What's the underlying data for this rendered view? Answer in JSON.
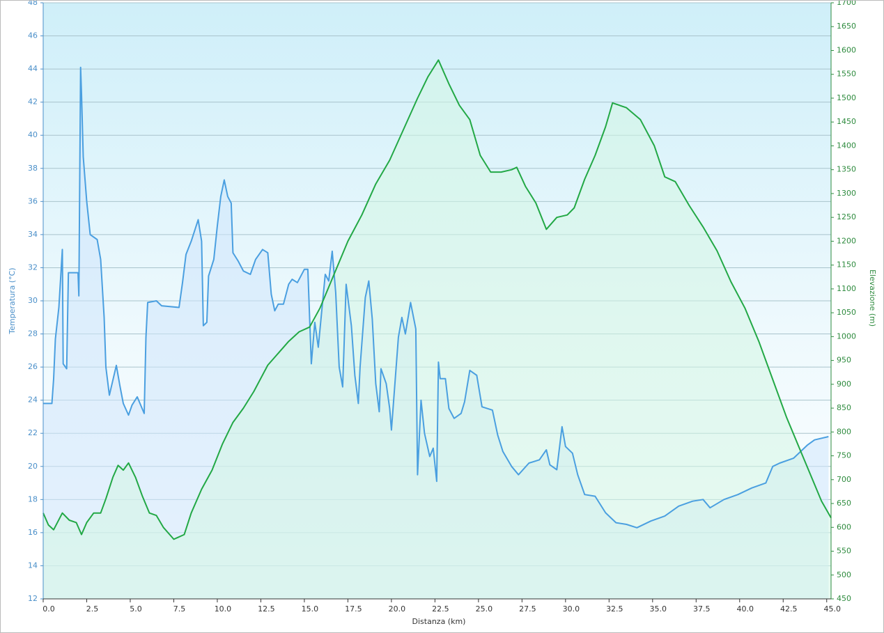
{
  "chart_data": {
    "type": "line",
    "x_label": "Distanza  (km)",
    "y_label": "Temperatura (°C)",
    "y2_label": "Elevazione (m)",
    "xlim": [
      0,
      45.25
    ],
    "xticks": [
      {
        "value": 0,
        "label": "0.0"
      },
      2.5,
      {
        "value": 5,
        "label": "5.0"
      },
      7.5,
      {
        "value": 10,
        "label": "10.0"
      },
      12.5,
      {
        "value": 15,
        "label": "15.0"
      },
      17.5,
      {
        "value": 20,
        "label": "20.0"
      },
      22.5,
      {
        "value": 25,
        "label": "25.0"
      },
      27.5,
      {
        "value": 30,
        "label": "30.0"
      },
      32.5,
      {
        "value": 35,
        "label": "35.0"
      },
      37.5,
      {
        "value": 40,
        "label": "40.0"
      },
      42.5,
      {
        "value": 45,
        "label": "45.0"
      }
    ],
    "ylim": [
      12,
      48
    ],
    "yticks": [
      12,
      14,
      16,
      18,
      20,
      22,
      24,
      26,
      28,
      30,
      32,
      34,
      36,
      38,
      40,
      42,
      44,
      46,
      48
    ],
    "y2lim": [
      450,
      1700
    ],
    "y2ticks": [
      450,
      500,
      550,
      600,
      650,
      700,
      750,
      800,
      850,
      900,
      950,
      1000,
      1050,
      1100,
      1150,
      1200,
      1250,
      1300,
      1350,
      1400,
      1450,
      1500,
      1550,
      1600,
      1650,
      1700
    ],
    "grid": true,
    "series": [
      {
        "name": "Temperatura",
        "color": "#4a9fe0",
        "fill": "#cfe6fb",
        "axis": "y",
        "x": [
          0,
          0.5,
          0.6,
          0.7,
          0.9,
          1.1,
          1.15,
          1.35,
          1.45,
          2.0,
          2.05,
          2.15,
          2.2,
          2.3,
          2.5,
          2.7,
          3.1,
          3.3,
          3.5,
          3.6,
          3.8,
          4.2,
          4.4,
          4.6,
          4.9,
          5.1,
          5.4,
          5.8,
          5.9,
          6.0,
          6.5,
          6.8,
          7.8,
          8.0,
          8.2,
          8.5,
          8.9,
          9.1,
          9.2,
          9.4,
          9.5,
          9.8,
          10.0,
          10.2,
          10.4,
          10.6,
          10.8,
          10.9,
          11.2,
          11.5,
          11.9,
          12.2,
          12.6,
          12.9,
          13.1,
          13.3,
          13.5,
          13.8,
          14.1,
          14.3,
          14.6,
          15.0,
          15.2,
          15.4,
          15.6,
          15.8,
          16.2,
          16.4,
          16.6,
          16.8,
          17.0,
          17.2,
          17.4,
          17.7,
          17.9,
          18.1,
          18.2,
          18.5,
          18.7,
          18.9,
          19.1,
          19.3,
          19.4,
          19.7,
          19.9,
          20.0,
          20.2,
          20.4,
          20.6,
          20.8,
          21.1,
          21.4,
          21.5,
          21.7,
          21.9,
          22.2,
          22.4,
          22.6,
          22.7,
          22.8,
          23.1,
          23.3,
          23.6,
          24.0,
          24.2,
          24.5,
          24.9,
          25.2,
          25.8,
          26.1,
          26.4,
          26.9,
          27.3,
          27.9,
          28.5,
          28.9,
          29.1,
          29.5,
          29.8,
          30.0,
          30.4,
          30.7,
          31.1,
          31.7,
          32.3,
          32.9,
          33.5,
          34.1,
          34.9,
          35.7,
          36.5,
          37.3,
          37.9,
          38.3,
          39.1,
          39.9,
          40.7,
          41.5,
          41.9,
          42.3,
          43.1,
          43.5,
          43.9,
          44.3,
          45.1
        ],
        "values": [
          23.8,
          23.8,
          25.3,
          27.7,
          29.6,
          33.1,
          26.2,
          25.9,
          31.7,
          31.7,
          30.3,
          44.1,
          42.5,
          38.7,
          36.0,
          34.0,
          33.7,
          32.5,
          29.0,
          26.0,
          24.3,
          26.1,
          24.9,
          23.8,
          23.1,
          23.7,
          24.2,
          23.2,
          27.8,
          29.9,
          30.0,
          29.7,
          29.6,
          31.1,
          32.8,
          33.6,
          34.9,
          33.6,
          28.5,
          28.7,
          31.5,
          32.5,
          34.5,
          36.3,
          37.3,
          36.3,
          35.9,
          32.9,
          32.4,
          31.8,
          31.6,
          32.5,
          33.1,
          32.9,
          30.4,
          29.4,
          29.8,
          29.8,
          31.0,
          31.3,
          31.1,
          31.9,
          31.9,
          26.2,
          28.7,
          27.2,
          31.6,
          31.2,
          33.0,
          30.5,
          26.0,
          24.8,
          31.0,
          28.5,
          25.5,
          23.8,
          26.0,
          30.2,
          31.2,
          28.9,
          25.0,
          23.3,
          25.9,
          25.0,
          23.5,
          22.2,
          25.0,
          27.8,
          29.0,
          28.0,
          29.9,
          28.3,
          19.5,
          24.0,
          22.0,
          20.6,
          21.1,
          19.1,
          26.3,
          25.3,
          25.3,
          23.5,
          22.9,
          23.2,
          23.9,
          25.8,
          25.5,
          23.6,
          23.4,
          21.9,
          20.9,
          20.0,
          19.5,
          20.2,
          20.4,
          21.0,
          20.1,
          19.8,
          22.4,
          21.2,
          20.8,
          19.5,
          18.3,
          18.2,
          17.2,
          16.6,
          16.5,
          16.3,
          16.7,
          17.0,
          17.6,
          17.9,
          18.0,
          17.5,
          18.0,
          18.3,
          18.7,
          19.0,
          20.0,
          20.2,
          20.5,
          20.9,
          21.3,
          21.6,
          21.8
        ]
      },
      {
        "name": "Elevazione",
        "color": "#22a845",
        "fill": "#d3f5e4",
        "axis": "y2",
        "x": [
          0,
          0.3,
          0.6,
          1.1,
          1.5,
          1.9,
          2.2,
          2.5,
          2.9,
          3.3,
          3.6,
          4.0,
          4.3,
          4.6,
          4.9,
          5.3,
          5.7,
          6.1,
          6.5,
          6.9,
          7.5,
          8.1,
          8.5,
          9.1,
          9.7,
          10.3,
          10.9,
          11.5,
          12.1,
          12.9,
          13.5,
          14.1,
          14.7,
          15.3,
          15.9,
          16.7,
          17.5,
          18.3,
          19.1,
          19.9,
          20.7,
          21.5,
          22.1,
          22.7,
          23.3,
          23.9,
          24.5,
          25.1,
          25.7,
          26.3,
          26.9,
          27.2,
          27.7,
          28.3,
          28.9,
          29.5,
          30.1,
          30.5,
          31.1,
          31.7,
          32.3,
          32.7,
          33.5,
          34.3,
          35.1,
          35.7,
          36.3,
          37.1,
          37.9,
          38.7,
          39.5,
          40.3,
          41.1,
          41.9,
          42.7,
          43.5,
          44.3,
          44.7,
          45.25
        ],
        "values": [
          630,
          605,
          595,
          630,
          615,
          610,
          585,
          610,
          630,
          630,
          660,
          705,
          730,
          720,
          735,
          705,
          665,
          630,
          625,
          600,
          575,
          585,
          630,
          680,
          720,
          775,
          820,
          850,
          885,
          940,
          965,
          990,
          1010,
          1020,
          1060,
          1130,
          1200,
          1255,
          1320,
          1370,
          1435,
          1500,
          1545,
          1580,
          1530,
          1485,
          1455,
          1380,
          1345,
          1345,
          1350,
          1355,
          1315,
          1280,
          1225,
          1250,
          1255,
          1270,
          1330,
          1380,
          1440,
          1490,
          1480,
          1455,
          1400,
          1335,
          1325,
          1275,
          1230,
          1180,
          1115,
          1060,
          990,
          910,
          830,
          760,
          690,
          655,
          620
        ]
      }
    ]
  }
}
